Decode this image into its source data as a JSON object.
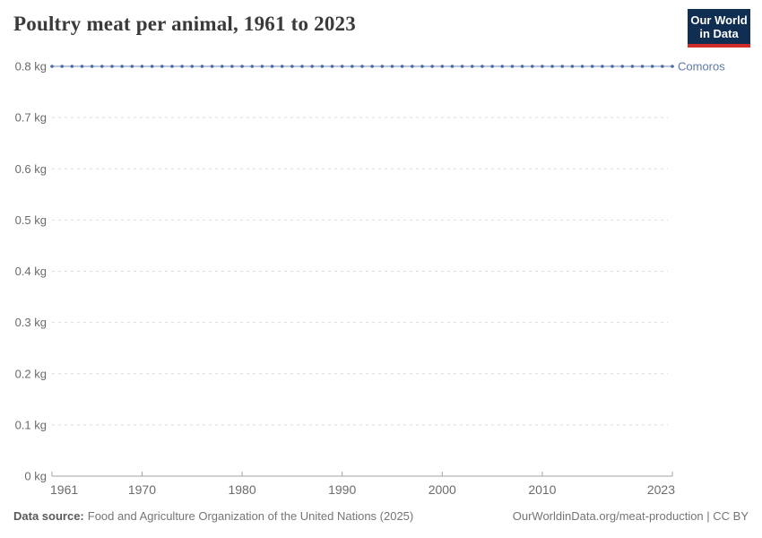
{
  "header": {
    "title": "Poultry meat per animal, 1961 to 2023",
    "logo": {
      "line1": "Our World",
      "line2": "in Data"
    }
  },
  "chart_data": {
    "type": "line",
    "title": "Poultry meat per animal, 1961 to 2023",
    "xlabel": "",
    "ylabel": "",
    "unit": "kg",
    "xlim": [
      1961,
      2023
    ],
    "ylim": [
      0,
      0.8
    ],
    "grid": "horizontal-dashed",
    "legend_position": "end-of-line-label",
    "x_ticks": [
      1961,
      1970,
      1980,
      1990,
      2000,
      2010,
      2023
    ],
    "y_ticks": [
      0,
      0.1,
      0.2,
      0.3,
      0.4,
      0.5,
      0.6,
      0.7,
      0.8
    ],
    "y_tick_labels": [
      "0 kg",
      "0.1 kg",
      "0.2 kg",
      "0.3 kg",
      "0.4 kg",
      "0.5 kg",
      "0.6 kg",
      "0.7 kg",
      "0.8 kg"
    ],
    "series": [
      {
        "name": "Comoros",
        "x": [
          1961,
          1962,
          1963,
          1964,
          1965,
          1966,
          1967,
          1968,
          1969,
          1970,
          1971,
          1972,
          1973,
          1974,
          1975,
          1976,
          1977,
          1978,
          1979,
          1980,
          1981,
          1982,
          1983,
          1984,
          1985,
          1986,
          1987,
          1988,
          1989,
          1990,
          1991,
          1992,
          1993,
          1994,
          1995,
          1996,
          1997,
          1998,
          1999,
          2000,
          2001,
          2002,
          2003,
          2004,
          2005,
          2006,
          2007,
          2008,
          2009,
          2010,
          2011,
          2012,
          2013,
          2014,
          2015,
          2016,
          2017,
          2018,
          2019,
          2020,
          2021,
          2022,
          2023
        ],
        "y": [
          0.8,
          0.8,
          0.8,
          0.8,
          0.8,
          0.8,
          0.8,
          0.8,
          0.8,
          0.8,
          0.8,
          0.8,
          0.8,
          0.8,
          0.8,
          0.8,
          0.8,
          0.8,
          0.8,
          0.8,
          0.8,
          0.8,
          0.8,
          0.8,
          0.8,
          0.8,
          0.8,
          0.8,
          0.8,
          0.8,
          0.8,
          0.8,
          0.8,
          0.8,
          0.8,
          0.8,
          0.8,
          0.8,
          0.8,
          0.8,
          0.8,
          0.8,
          0.8,
          0.8,
          0.8,
          0.8,
          0.8,
          0.8,
          0.8,
          0.8,
          0.8,
          0.8,
          0.8,
          0.8,
          0.8,
          0.8,
          0.8,
          0.8,
          0.8,
          0.8,
          0.8,
          0.8,
          0.8
        ]
      }
    ],
    "colors": {
      "series": "#4d6b9e",
      "series_line": "#a0b4d2",
      "series_label": "#5b79a5",
      "grid": "#dcdcdc",
      "axis": "#a3a3a3",
      "tick_label": "#6b6b6b",
      "title": "#3a3a3a",
      "logo_bg": "#0f2e52",
      "logo_accent": "#cf2b29",
      "footer_text": "#757575"
    }
  },
  "footer": {
    "data_source_label": "Data source:",
    "data_source_value": "Food and Agriculture Organization of the United Nations (2025)",
    "attribution": "OurWorldinData.org/meat-production | CC BY"
  }
}
